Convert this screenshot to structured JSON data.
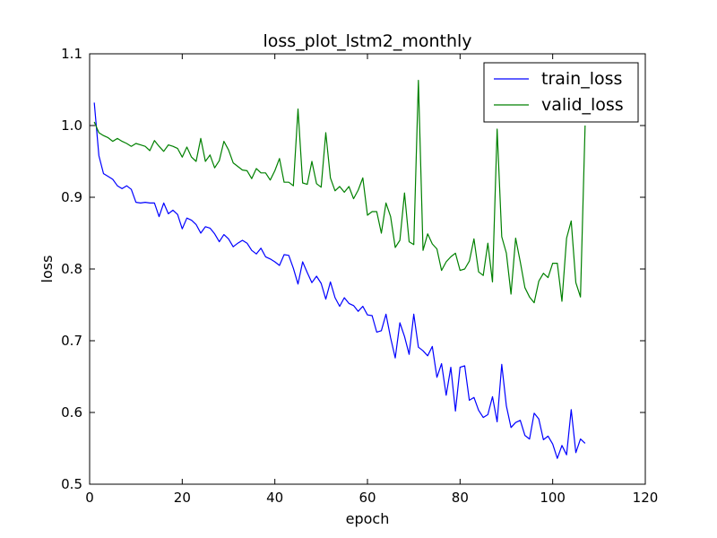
{
  "chart_data": {
    "type": "line",
    "title": "loss_plot_lstm2_monthly",
    "xlabel": "epoch",
    "ylabel": "loss",
    "xlim": [
      0,
      120
    ],
    "ylim": [
      0.5,
      1.1
    ],
    "xticks": [
      0,
      20,
      40,
      60,
      80,
      100,
      120
    ],
    "yticks": [
      0.5,
      0.6,
      0.7,
      0.8,
      0.9,
      1.0,
      1.1
    ],
    "xtick_labels": [
      "0",
      "20",
      "40",
      "60",
      "80",
      "100",
      "120"
    ],
    "ytick_labels": [
      "0.5",
      "0.6",
      "0.7",
      "0.8",
      "0.9",
      "1.0",
      "1.1"
    ],
    "grid": false,
    "legend": "top-right",
    "series": [
      {
        "name": "train_loss",
        "color": "#0000ff",
        "x": [
          1,
          2,
          3,
          4,
          5,
          6,
          7,
          8,
          9,
          10,
          11,
          12,
          13,
          14,
          15,
          16,
          17,
          18,
          19,
          20,
          21,
          22,
          23,
          24,
          25,
          26,
          27,
          28,
          29,
          30,
          31,
          32,
          33,
          34,
          35,
          36,
          37,
          38,
          39,
          40,
          41,
          42,
          43,
          44,
          45,
          46,
          47,
          48,
          49,
          50,
          51,
          52,
          53,
          54,
          55,
          56,
          57,
          58,
          59,
          60,
          61,
          62,
          63,
          64,
          65,
          66,
          67,
          68,
          69,
          70,
          71,
          72,
          73,
          74,
          75,
          76,
          77,
          78,
          79,
          80,
          81,
          82,
          83,
          84,
          85,
          86,
          87,
          88,
          89,
          90,
          91,
          92,
          93,
          94,
          95,
          96,
          97,
          98,
          99,
          100,
          101,
          102,
          103,
          104,
          105,
          106,
          107
        ],
        "values": [
          1.032,
          0.958,
          0.933,
          0.929,
          0.925,
          0.916,
          0.912,
          0.916,
          0.911,
          0.893,
          0.892,
          0.893,
          0.892,
          0.892,
          0.873,
          0.892,
          0.877,
          0.882,
          0.876,
          0.856,
          0.871,
          0.868,
          0.862,
          0.85,
          0.859,
          0.857,
          0.849,
          0.838,
          0.848,
          0.842,
          0.831,
          0.836,
          0.84,
          0.836,
          0.826,
          0.821,
          0.829,
          0.817,
          0.814,
          0.81,
          0.805,
          0.82,
          0.819,
          0.801,
          0.779,
          0.81,
          0.795,
          0.781,
          0.79,
          0.78,
          0.758,
          0.782,
          0.76,
          0.748,
          0.76,
          0.752,
          0.749,
          0.741,
          0.748,
          0.736,
          0.735,
          0.712,
          0.714,
          0.737,
          0.704,
          0.676,
          0.725,
          0.706,
          0.681,
          0.737,
          0.691,
          0.686,
          0.679,
          0.692,
          0.649,
          0.668,
          0.624,
          0.663,
          0.602,
          0.663,
          0.665,
          0.617,
          0.621,
          0.603,
          0.593,
          0.597,
          0.622,
          0.587,
          0.667,
          0.609,
          0.579,
          0.586,
          0.589,
          0.568,
          0.563,
          0.599,
          0.591,
          0.562,
          0.567,
          0.556,
          0.536,
          0.554,
          0.541,
          0.604,
          0.544,
          0.563,
          0.557
        ]
      },
      {
        "name": "valid_loss",
        "color": "#008000",
        "x": [
          1,
          2,
          3,
          4,
          5,
          6,
          7,
          8,
          9,
          10,
          11,
          12,
          13,
          14,
          15,
          16,
          17,
          18,
          19,
          20,
          21,
          22,
          23,
          24,
          25,
          26,
          27,
          28,
          29,
          30,
          31,
          32,
          33,
          34,
          35,
          36,
          37,
          38,
          39,
          40,
          41,
          42,
          43,
          44,
          45,
          46,
          47,
          48,
          49,
          50,
          51,
          52,
          53,
          54,
          55,
          56,
          57,
          58,
          59,
          60,
          61,
          62,
          63,
          64,
          65,
          66,
          67,
          68,
          69,
          70,
          71,
          72,
          73,
          74,
          75,
          76,
          77,
          78,
          79,
          80,
          81,
          82,
          83,
          84,
          85,
          86,
          87,
          88,
          89,
          90,
          91,
          92,
          93,
          94,
          95,
          96,
          97,
          98,
          99,
          100,
          101,
          102,
          103,
          104,
          105,
          106,
          107
        ],
        "values": [
          1.005,
          0.99,
          0.986,
          0.983,
          0.978,
          0.982,
          0.978,
          0.975,
          0.971,
          0.975,
          0.973,
          0.971,
          0.965,
          0.979,
          0.971,
          0.964,
          0.973,
          0.971,
          0.968,
          0.956,
          0.97,
          0.956,
          0.95,
          0.982,
          0.95,
          0.959,
          0.941,
          0.951,
          0.978,
          0.966,
          0.948,
          0.943,
          0.938,
          0.937,
          0.926,
          0.94,
          0.934,
          0.934,
          0.924,
          0.937,
          0.954,
          0.921,
          0.921,
          0.916,
          1.023,
          0.92,
          0.918,
          0.95,
          0.919,
          0.914,
          0.99,
          0.927,
          0.909,
          0.915,
          0.907,
          0.915,
          0.898,
          0.91,
          0.927,
          0.875,
          0.88,
          0.88,
          0.85,
          0.892,
          0.873,
          0.83,
          0.84,
          0.906,
          0.838,
          0.834,
          1.063,
          0.826,
          0.849,
          0.835,
          0.828,
          0.798,
          0.81,
          0.817,
          0.822,
          0.798,
          0.8,
          0.811,
          0.842,
          0.796,
          0.791,
          0.836,
          0.782,
          0.995,
          0.845,
          0.822,
          0.765,
          0.843,
          0.81,
          0.774,
          0.761,
          0.753,
          0.783,
          0.794,
          0.788,
          0.808,
          0.808,
          0.755,
          0.843,
          0.867,
          0.781,
          0.761,
          1.0
        ]
      }
    ]
  }
}
